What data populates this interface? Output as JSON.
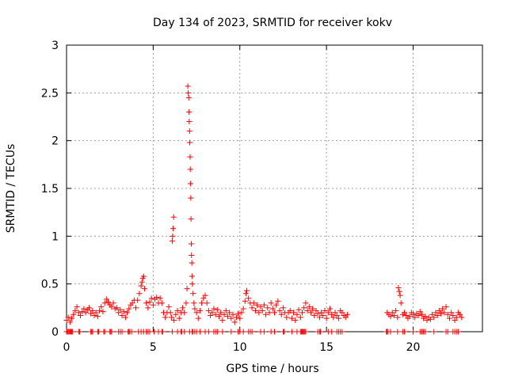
{
  "chart_data": {
    "type": "scatter",
    "title": "Day 134 of 2023, SRMTID for receiver kokv",
    "xlabel": "GPS time / hours",
    "ylabel": "SRMTID / TECUs",
    "xlim": [
      0,
      24
    ],
    "ylim": [
      0,
      3
    ],
    "grid": true,
    "marker": "+",
    "color": "#ff0000",
    "x_ticks": [
      0,
      5,
      10,
      15,
      20
    ],
    "x_tick_labels": [
      "0",
      "5",
      "10",
      "15",
      "20"
    ],
    "y_ticks": [
      0,
      0.5,
      1,
      1.5,
      2,
      2.5,
      3
    ],
    "y_tick_labels": [
      "0",
      "0.5",
      "1",
      "1.5",
      "2",
      "2.5",
      "3"
    ],
    "series": [
      {
        "name": "SRMTID",
        "points": [
          [
            0.0,
            0.12
          ],
          [
            0.1,
            0.15
          ],
          [
            0.2,
            0.1
          ],
          [
            0.3,
            0.14
          ],
          [
            0.4,
            0.18
          ],
          [
            0.5,
            0.22
          ],
          [
            0.6,
            0.26
          ],
          [
            0.7,
            0.2
          ],
          [
            0.8,
            0.17
          ],
          [
            0.9,
            0.21
          ],
          [
            1.0,
            0.24
          ],
          [
            1.1,
            0.2
          ],
          [
            1.2,
            0.23
          ],
          [
            1.3,
            0.25
          ],
          [
            1.4,
            0.19
          ],
          [
            1.5,
            0.22
          ],
          [
            1.6,
            0.17
          ],
          [
            1.7,
            0.2
          ],
          [
            1.8,
            0.16
          ],
          [
            1.9,
            0.22
          ],
          [
            2.0,
            0.26
          ],
          [
            2.1,
            0.21
          ],
          [
            2.2,
            0.3
          ],
          [
            2.3,
            0.34
          ],
          [
            2.4,
            0.31
          ],
          [
            2.5,
            0.28
          ],
          [
            2.6,
            0.26
          ],
          [
            2.7,
            0.3
          ],
          [
            2.8,
            0.24
          ],
          [
            2.9,
            0.25
          ],
          [
            3.0,
            0.2
          ],
          [
            3.1,
            0.23
          ],
          [
            3.2,
            0.17
          ],
          [
            3.3,
            0.21
          ],
          [
            3.4,
            0.15
          ],
          [
            3.5,
            0.2
          ],
          [
            3.6,
            0.24
          ],
          [
            3.7,
            0.28
          ],
          [
            3.8,
            0.3
          ],
          [
            3.9,
            0.33
          ],
          [
            4.0,
            0.25
          ],
          [
            4.1,
            0.33
          ],
          [
            4.2,
            0.4
          ],
          [
            4.3,
            0.48
          ],
          [
            4.35,
            0.52
          ],
          [
            4.4,
            0.56
          ],
          [
            4.45,
            0.58
          ],
          [
            4.5,
            0.45
          ],
          [
            4.6,
            0.3
          ],
          [
            4.7,
            0.25
          ],
          [
            4.8,
            0.31
          ],
          [
            4.9,
            0.35
          ],
          [
            5.0,
            0.28
          ],
          [
            5.1,
            0.34
          ],
          [
            5.2,
            0.36
          ],
          [
            5.3,
            0.3
          ],
          [
            5.4,
            0.35
          ],
          [
            5.5,
            0.3
          ],
          [
            5.6,
            0.2
          ],
          [
            5.7,
            0.15
          ],
          [
            5.8,
            0.2
          ],
          [
            5.9,
            0.26
          ],
          [
            6.0,
            0.2
          ],
          [
            6.05,
            0.15
          ],
          [
            6.1,
            0.95
          ],
          [
            6.12,
            1.0
          ],
          [
            6.15,
            1.08
          ],
          [
            6.18,
            1.2
          ],
          [
            6.2,
            0.12
          ],
          [
            6.3,
            0.18
          ],
          [
            6.4,
            0.22
          ],
          [
            6.5,
            0.14
          ],
          [
            6.6,
            0.2
          ],
          [
            6.7,
            0.25
          ],
          [
            6.8,
            0.2
          ],
          [
            6.9,
            0.3
          ],
          [
            6.95,
            0.45
          ],
          [
            7.0,
            2.57
          ],
          [
            7.02,
            2.5
          ],
          [
            7.05,
            2.45
          ],
          [
            7.07,
            2.3
          ],
          [
            7.08,
            2.2
          ],
          [
            7.1,
            2.1
          ],
          [
            7.11,
            1.98
          ],
          [
            7.13,
            1.83
          ],
          [
            7.14,
            1.7
          ],
          [
            7.15,
            1.55
          ],
          [
            7.17,
            1.4
          ],
          [
            7.18,
            1.18
          ],
          [
            7.2,
            0.92
          ],
          [
            7.21,
            0.8
          ],
          [
            7.23,
            0.72
          ],
          [
            7.24,
            0.58
          ],
          [
            7.26,
            0.5
          ],
          [
            7.3,
            0.4
          ],
          [
            7.35,
            0.3
          ],
          [
            7.4,
            0.24
          ],
          [
            7.5,
            0.2
          ],
          [
            7.6,
            0.14
          ],
          [
            7.7,
            0.22
          ],
          [
            7.8,
            0.3
          ],
          [
            7.9,
            0.35
          ],
          [
            8.0,
            0.38
          ],
          [
            8.1,
            0.3
          ],
          [
            8.2,
            0.22
          ],
          [
            8.3,
            0.17
          ],
          [
            8.4,
            0.2
          ],
          [
            8.5,
            0.24
          ],
          [
            8.6,
            0.18
          ],
          [
            8.7,
            0.23
          ],
          [
            8.8,
            0.16
          ],
          [
            8.9,
            0.2
          ],
          [
            9.0,
            0.12
          ],
          [
            9.1,
            0.18
          ],
          [
            9.2,
            0.22
          ],
          [
            9.3,
            0.16
          ],
          [
            9.4,
            0.2
          ],
          [
            9.5,
            0.14
          ],
          [
            9.6,
            0.18
          ],
          [
            9.7,
            0.1
          ],
          [
            9.8,
            0.15
          ],
          [
            9.9,
            0.19
          ],
          [
            10.0,
            0.14
          ],
          [
            10.1,
            0.2
          ],
          [
            10.2,
            0.24
          ],
          [
            10.3,
            0.32
          ],
          [
            10.35,
            0.4
          ],
          [
            10.4,
            0.43
          ],
          [
            10.5,
            0.35
          ],
          [
            10.6,
            0.3
          ],
          [
            10.7,
            0.25
          ],
          [
            10.8,
            0.3
          ],
          [
            10.9,
            0.22
          ],
          [
            11.0,
            0.28
          ],
          [
            11.1,
            0.2
          ],
          [
            11.2,
            0.26
          ],
          [
            11.3,
            0.22
          ],
          [
            11.4,
            0.28
          ],
          [
            11.5,
            0.18
          ],
          [
            11.6,
            0.25
          ],
          [
            11.7,
            0.2
          ],
          [
            11.8,
            0.3
          ],
          [
            11.9,
            0.24
          ],
          [
            12.0,
            0.2
          ],
          [
            12.1,
            0.28
          ],
          [
            12.2,
            0.32
          ],
          [
            12.3,
            0.22
          ],
          [
            12.4,
            0.18
          ],
          [
            12.5,
            0.25
          ],
          [
            12.6,
            0.2
          ],
          [
            12.7,
            0.15
          ],
          [
            12.8,
            0.2
          ],
          [
            12.9,
            0.22
          ],
          [
            13.0,
            0.14
          ],
          [
            13.1,
            0.2
          ],
          [
            13.2,
            0.12
          ],
          [
            13.3,
            0.18
          ],
          [
            13.4,
            0.23
          ],
          [
            13.5,
            0.15
          ],
          [
            13.6,
            0.2
          ],
          [
            13.7,
            0.25
          ],
          [
            13.8,
            0.3
          ],
          [
            13.9,
            0.22
          ],
          [
            14.0,
            0.26
          ],
          [
            14.1,
            0.2
          ],
          [
            14.2,
            0.24
          ],
          [
            14.3,
            0.17
          ],
          [
            14.4,
            0.22
          ],
          [
            14.5,
            0.19
          ],
          [
            14.6,
            0.15
          ],
          [
            14.7,
            0.2
          ],
          [
            14.8,
            0.17
          ],
          [
            14.9,
            0.22
          ],
          [
            15.0,
            0.14
          ],
          [
            15.1,
            0.2
          ],
          [
            15.2,
            0.24
          ],
          [
            15.3,
            0.18
          ],
          [
            15.4,
            0.15
          ],
          [
            15.5,
            0.2
          ],
          [
            15.6,
            0.17
          ],
          [
            15.7,
            0.14
          ],
          [
            15.8,
            0.22
          ],
          [
            15.9,
            0.2
          ],
          [
            16.0,
            0.17
          ],
          [
            16.1,
            0.15
          ],
          [
            16.2,
            0.18
          ],
          [
            18.5,
            0.2
          ],
          [
            18.6,
            0.18
          ],
          [
            18.7,
            0.16
          ],
          [
            18.8,
            0.2
          ],
          [
            18.9,
            0.17
          ],
          [
            19.0,
            0.22
          ],
          [
            19.1,
            0.15
          ],
          [
            19.15,
            0.46
          ],
          [
            19.2,
            0.42
          ],
          [
            19.25,
            0.38
          ],
          [
            19.3,
            0.3
          ],
          [
            19.4,
            0.18
          ],
          [
            19.5,
            0.2
          ],
          [
            19.6,
            0.17
          ],
          [
            19.7,
            0.14
          ],
          [
            19.8,
            0.16
          ],
          [
            19.9,
            0.2
          ],
          [
            20.0,
            0.18
          ],
          [
            20.1,
            0.15
          ],
          [
            20.2,
            0.19
          ],
          [
            20.3,
            0.17
          ],
          [
            20.4,
            0.21
          ],
          [
            20.5,
            0.18
          ],
          [
            20.6,
            0.14
          ],
          [
            20.7,
            0.16
          ],
          [
            20.8,
            0.12
          ],
          [
            20.9,
            0.15
          ],
          [
            21.0,
            0.13
          ],
          [
            21.1,
            0.18
          ],
          [
            21.2,
            0.15
          ],
          [
            21.3,
            0.2
          ],
          [
            21.4,
            0.17
          ],
          [
            21.5,
            0.22
          ],
          [
            21.6,
            0.19
          ],
          [
            21.7,
            0.24
          ],
          [
            21.8,
            0.2
          ],
          [
            21.9,
            0.26
          ],
          [
            22.0,
            0.18
          ],
          [
            22.1,
            0.14
          ],
          [
            22.2,
            0.2
          ],
          [
            22.3,
            0.17
          ],
          [
            22.4,
            0.12
          ],
          [
            22.5,
            0.15
          ],
          [
            22.6,
            0.2
          ],
          [
            22.7,
            0.18
          ],
          [
            22.8,
            0.15
          ]
        ],
        "zero_points": [
          0.0,
          0.05,
          0.1,
          0.15,
          0.2,
          0.25,
          0.3,
          0.35,
          0.7,
          0.75,
          1.4,
          1.45,
          1.5,
          1.8,
          1.85,
          2.15,
          2.2,
          2.5,
          2.55,
          2.6,
          3.0,
          3.1,
          3.2,
          3.55,
          3.6,
          3.65,
          3.75,
          4.15,
          4.3,
          4.45,
          4.6,
          4.7,
          4.8,
          5.05,
          5.3,
          5.5,
          5.55,
          6.1,
          6.4,
          6.6,
          6.65,
          6.8,
          7.1,
          7.25,
          7.3,
          7.4,
          7.5,
          7.7,
          8.0,
          8.2,
          8.5,
          8.6,
          8.7,
          9.0,
          9.5,
          9.9,
          10.0,
          10.2,
          10.5,
          10.6,
          10.7,
          11.2,
          11.4,
          11.8,
          12.0,
          12.5,
          12.55,
          13.0,
          13.3,
          13.5,
          13.55,
          13.6,
          13.65,
          13.7,
          13.75,
          13.8,
          14.5,
          14.6,
          14.65,
          15.1,
          15.3,
          15.6,
          15.7,
          15.8,
          15.9,
          18.45,
          18.5,
          18.55,
          18.7,
          19.1,
          19.4,
          19.5,
          20.0,
          20.4,
          20.5,
          20.6,
          20.7,
          21.2,
          21.9,
          22.0,
          22.3,
          22.4,
          22.5,
          22.6
        ]
      }
    ]
  }
}
